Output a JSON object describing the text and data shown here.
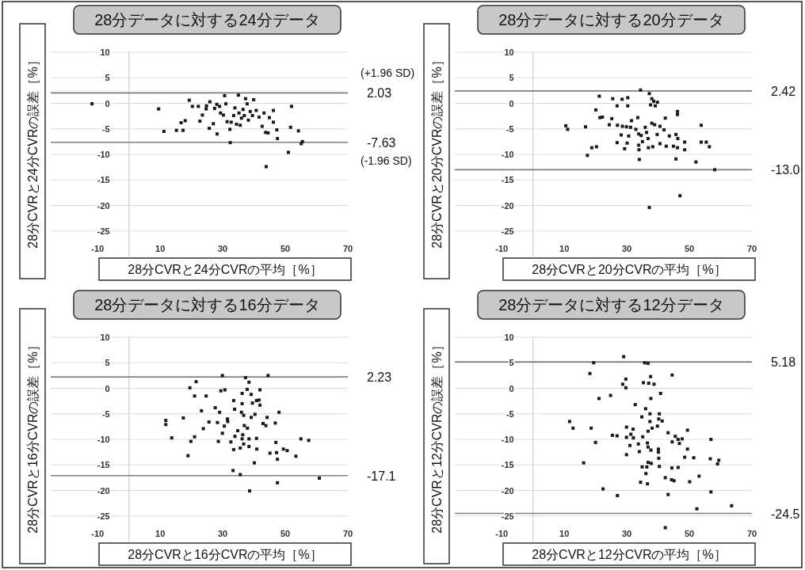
{
  "chart_data": [
    {
      "type": "scatter",
      "title": "28分データに対する24分データ",
      "xlabel": "28分CVRと24分CVRの平均［%］",
      "ylabel": "28分CVRと24分CVRの誤差［%］",
      "color": "#1a1a1a",
      "marker": "square",
      "grid": "y",
      "xlim": [
        -25,
        70
      ],
      "ylim": [
        -30,
        10
      ],
      "xticks": [
        -10,
        10,
        30,
        50,
        70
      ],
      "yticks": [
        10,
        5,
        0,
        -5,
        -10,
        -15,
        -20,
        -25
      ],
      "x": [
        -11.8,
        9.5,
        11.2,
        15.2,
        17.3,
        16.7,
        18,
        19.3,
        20.3,
        22.2,
        22.7,
        23.5,
        24.8,
        25.9,
        24.7,
        25.7,
        27,
        27.4,
        28.1,
        28.2,
        29,
        29.3,
        30.2,
        30.6,
        31,
        31.4,
        32.3,
        32.4,
        32.7,
        33.5,
        33.9,
        34.4,
        35,
        35.2,
        35.6,
        36,
        36.5,
        36.9,
        37.3,
        37.8,
        38.2,
        38.8,
        39.5,
        39.9,
        40.7,
        41.6,
        42.6,
        43.2,
        43.7,
        44.5,
        44.9,
        46.2,
        46.2,
        47.3,
        47.5,
        51,
        43.9,
        51.7,
        52,
        54.2,
        55.5,
        55.1
      ],
      "values": [
        -0.1,
        -1.1,
        -5.5,
        -5.3,
        -5.3,
        -3.8,
        -3.4,
        0.6,
        -0.6,
        -0.6,
        -3.5,
        -2.3,
        -0.5,
        0.3,
        -1.1,
        -4.9,
        -4,
        -1,
        -0.2,
        -6,
        -0.6,
        -1.9,
        -2.3,
        1.5,
        -0.1,
        -3.6,
        -5.1,
        -7.7,
        -3.7,
        -2.4,
        -0.9,
        -4.1,
        1.6,
        -1.9,
        -4.3,
        -2.9,
        -1.2,
        -2.4,
        0.9,
        -0.1,
        -3.3,
        -1.6,
        -2.4,
        0.7,
        -1.4,
        -2.7,
        -4.5,
        -1.9,
        -5.7,
        -5.8,
        -2.8,
        -1.4,
        -3.7,
        -5.2,
        -6.9,
        -9.6,
        -12.4,
        -4.7,
        -0.6,
        -5.4,
        -7.5,
        -7.9
      ],
      "ref_lines": [
        {
          "axis": "y",
          "value": 2.03,
          "label": "2.03",
          "color": "#7f7f7f"
        },
        {
          "axis": "y",
          "value": -7.63,
          "label": "-7.63",
          "color": "#7f7f7f"
        }
      ],
      "annotations": [
        "(+1.96 SD)",
        "(-1.96 SD)"
      ]
    },
    {
      "type": "scatter",
      "title": "28分データに対する20分データ",
      "xlabel": "28分CVRと20分CVRの平均［%］",
      "ylabel": "28分CVRと20分CVRの誤差［%］",
      "color": "#1a1a1a",
      "marker": "square",
      "grid": "y",
      "xlim": [
        -25,
        70
      ],
      "ylim": [
        -30,
        10
      ],
      "xticks": [
        -10,
        10,
        30,
        50,
        70
      ],
      "yticks": [
        10,
        5,
        0,
        -5,
        -10,
        -15,
        -20,
        -25
      ],
      "x": [
        34.4,
        37.2,
        21.2,
        25.5,
        28.5,
        30.3,
        38,
        38.6,
        39.8,
        37.6,
        39.1,
        26.9,
        30.3,
        20.1,
        21.4,
        22.2,
        25.2,
        31.5,
        33.5,
        42.3,
        46.2,
        46.2,
        10.5,
        11.1,
        16.8,
        24.4,
        27,
        28.6,
        29.9,
        31.2,
        32.9,
        33.8,
        34.6,
        35.9,
        36.3,
        38,
        38.9,
        40.6,
        41.9,
        39.7,
        43.6,
        45.7,
        46.3,
        53.8,
        28.2,
        30.6,
        35,
        36.8,
        26.9,
        30.1,
        33.8,
        36.9,
        38.3,
        40.6,
        42.6,
        44.9,
        46.2,
        48.5,
        48.5,
        53.8,
        55.4,
        56.4,
        29.3,
        33.9,
        18.8,
        20.3,
        17.4,
        34,
        45.7,
        52.1,
        58.1,
        47,
        37.2
      ],
      "values": [
        2.6,
        1.9,
        1.4,
        0.9,
        0.8,
        1.1,
        0.9,
        0.4,
        0.2,
        -0.3,
        -0.5,
        -0.5,
        -0.5,
        -1.3,
        -2.8,
        -2.7,
        -3,
        -3.4,
        -2.8,
        -2.9,
        -1.6,
        -2.2,
        -4.4,
        -5.1,
        -4.6,
        -4.2,
        -4.3,
        -4.5,
        -4.6,
        -4.7,
        -5.1,
        -6,
        -6.3,
        -4.7,
        -5.7,
        -3.9,
        -4.2,
        -4.5,
        -5.2,
        -6.1,
        -6.4,
        -6.1,
        -6.9,
        -4.3,
        -6.2,
        -6.4,
        -7.5,
        -6.9,
        -7.7,
        -7.8,
        -8.2,
        -8.7,
        -8.5,
        -7.9,
        -8.4,
        -8.4,
        -8.7,
        -7.6,
        -9.1,
        -7.6,
        -7.6,
        -8.5,
        -8.9,
        -9.1,
        -8.7,
        -8.5,
        -10.2,
        -11,
        -10.9,
        -11.5,
        -13,
        -18.1,
        -20.4
      ],
      "ref_lines": [
        {
          "axis": "y",
          "value": 2.42,
          "label": "2.42",
          "color": "#7f7f7f"
        },
        {
          "axis": "y",
          "value": -13.0,
          "label": "-13.0",
          "color": "#7f7f7f"
        }
      ]
    },
    {
      "type": "scatter",
      "title": "28分データに対する16分データ",
      "xlabel": "28分CVRと16分CVRの平均［%］",
      "ylabel": "28分CVRと16分CVRの誤差［%］",
      "color": "#1a1a1a",
      "marker": "square",
      "grid": "y",
      "xlim": [
        -25,
        70
      ],
      "ylim": [
        -30,
        10
      ],
      "xticks": [
        -10,
        10,
        30,
        50,
        70
      ],
      "yticks": [
        10,
        5,
        0,
        -5,
        -10,
        -15,
        -20,
        -25
      ],
      "x": [
        29.9,
        37.3,
        44.5,
        21.5,
        38.4,
        19.5,
        29.4,
        30.7,
        37.8,
        41.9,
        21,
        24.7,
        36.2,
        39.1,
        33.5,
        36.2,
        39.5,
        40.8,
        41.6,
        41.9,
        23.2,
        27.6,
        29,
        33.8,
        36,
        36.7,
        39.1,
        40.3,
        44.2,
        48,
        11.8,
        11.8,
        17.4,
        25.6,
        28.3,
        31.5,
        31.6,
        30.5,
        36.9,
        37.9,
        42.9,
        43.8,
        46.8,
        23.8,
        29.9,
        34.8,
        33.9,
        36.4,
        13.7,
        19.8,
        21,
        28.6,
        32.6,
        36.2,
        38.4,
        40.8,
        33.5,
        35.6,
        36.7,
        38.4,
        40.9,
        47,
        49.4,
        50.6,
        45.1,
        47.2,
        47.5,
        53.4,
        55,
        57.5,
        18.9,
        40.1,
        33.3,
        35.6,
        47.5,
        60.9,
        38.6
      ],
      "values": [
        2.5,
        2.1,
        2.5,
        1.3,
        1.2,
        0.1,
        -0.5,
        -0.3,
        -0.2,
        -0.3,
        -1.5,
        -1.5,
        -1,
        -1.2,
        -2.4,
        -3,
        -2.9,
        -2.4,
        -2.3,
        -3.3,
        -4.4,
        -3.8,
        -4.7,
        -4.1,
        -4.7,
        -5.3,
        -5.7,
        -5.1,
        -5.7,
        -4.7,
        -6.3,
        -7.1,
        -5.8,
        -6.6,
        -6.7,
        -6,
        -6.5,
        -7.4,
        -7.3,
        -7.8,
        -6.9,
        -7.3,
        -6.8,
        -7.9,
        -8.8,
        -8.3,
        -9.4,
        -9.1,
        -9.7,
        -10.4,
        -9.5,
        -10.4,
        -10.5,
        -9.9,
        -9.9,
        -9.8,
        -12,
        -11.7,
        -10.9,
        -11.4,
        -11.9,
        -10.6,
        -11.9,
        -12.2,
        -12.7,
        -12.6,
        -13.9,
        -13.3,
        -9.9,
        -10.2,
        -13.2,
        -14.6,
        -16.1,
        -16.9,
        -18.5,
        -17.6,
        -20.1
      ],
      "ref_lines": [
        {
          "axis": "y",
          "value": 2.23,
          "label": "2.23",
          "color": "#7f7f7f"
        },
        {
          "axis": "y",
          "value": -17.1,
          "label": "-17.1",
          "color": "#7f7f7f"
        }
      ]
    },
    {
      "type": "scatter",
      "title": "28分データに対する12分データ",
      "xlabel": "28分CVRと12分CVRの平均［%］",
      "ylabel": "28分CVRと12分CVRの誤差［%］",
      "color": "#1a1a1a",
      "marker": "square",
      "grid": "y",
      "xlim": [
        -25,
        70
      ],
      "ylim": [
        -30,
        10
      ],
      "xticks": [
        -10,
        10,
        30,
        50,
        70
      ],
      "yticks": [
        10,
        5,
        0,
        -5,
        -10,
        -15,
        -20,
        -25
      ],
      "x": [
        29,
        19.4,
        35.7,
        36.8,
        18.2,
        44.5,
        37.6,
        29.7,
        28.7,
        29.7,
        35.3,
        37,
        38.7,
        40.8,
        21.1,
        24.8,
        37.7,
        32.7,
        36,
        37.4,
        40.4,
        34.8,
        40.2,
        41.3,
        37.4,
        11.7,
        12.8,
        18.6,
        29.9,
        32,
        38.1,
        39.8,
        36.8,
        43.2,
        49.4,
        25.4,
        26.9,
        29.9,
        31.3,
        32.1,
        35.1,
        45.5,
        46.4,
        47.7,
        44.5,
        46.8,
        20,
        31,
        33.7,
        36.6,
        36.8,
        37.7,
        34,
        40.1,
        40.1,
        49.4,
        56.9,
        29.9,
        40.2,
        48.5,
        51.4,
        56.7,
        59.4,
        59,
        36.8,
        37.8,
        16.2,
        34.9,
        36.4,
        40.4,
        44.4,
        46.4,
        36.1,
        53.1,
        42.3,
        44.3,
        45.1,
        34.4,
        36.6,
        50.1,
        22.4,
        27,
        43.2,
        56.9,
        63.5,
        52.4,
        42.3
      ],
      "values": [
        6.2,
        5,
        5,
        4.9,
        2.9,
        2.6,
        2.3,
        1.8,
        0.8,
        0.1,
        1.1,
        1,
        0.8,
        -1,
        -2,
        -1.4,
        -2,
        -3.2,
        -4,
        -5,
        -5,
        -5.6,
        -6,
        -6.4,
        -6.5,
        -6.5,
        -7.8,
        -7.8,
        -7.6,
        -8,
        -7.8,
        -7.4,
        -8.4,
        -8.7,
        -8.2,
        -9.2,
        -9.3,
        -9.6,
        -9,
        -9.7,
        -9.5,
        -9.4,
        -10,
        -9.9,
        -10.5,
        -10.8,
        -10.6,
        -11.2,
        -10.9,
        -10.7,
        -11.5,
        -12.1,
        -12.4,
        -11.9,
        -12.5,
        -11.9,
        -10,
        -13,
        -13.7,
        -13.5,
        -13.6,
        -13.8,
        -14.1,
        -14.8,
        -14.5,
        -14.7,
        -14.6,
        -15.4,
        -15.4,
        -15.3,
        -15.6,
        -15.5,
        -16.7,
        -17.2,
        -17.5,
        -17.9,
        -18.1,
        -18.4,
        -18.7,
        -18.3,
        -19.7,
        -21,
        -20.8,
        -20.3,
        -23,
        -23.6,
        -27.3
      ],
      "ref_lines": [
        {
          "axis": "y",
          "value": 5.18,
          "label": "5.18",
          "color": "#7f7f7f"
        },
        {
          "axis": "y",
          "value": -24.5,
          "label": "-24.5",
          "color": "#7f7f7f"
        }
      ]
    }
  ]
}
